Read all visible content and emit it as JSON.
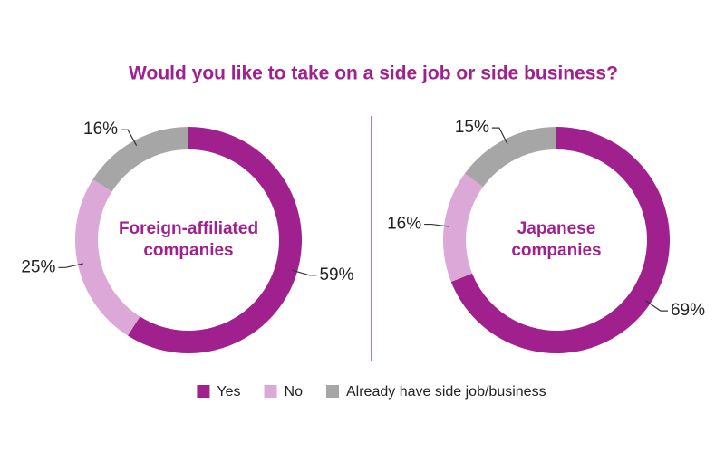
{
  "title": "Would you like to take on a side job or side business?",
  "chart_data": [
    {
      "type": "pie",
      "donut": true,
      "title": "Foreign-affiliated companies",
      "categories": [
        "Yes",
        "No",
        "Already have side job/business"
      ],
      "colors": [
        "#a0208e",
        "#dca8d8",
        "#a6a6a6"
      ],
      "values": [
        59,
        25,
        16
      ],
      "value_labels": [
        "59%",
        "25%",
        "16%"
      ]
    },
    {
      "type": "pie",
      "donut": true,
      "title": "Japanese companies",
      "categories": [
        "Yes",
        "No",
        "Already have side job/business"
      ],
      "colors": [
        "#a0208e",
        "#dca8d8",
        "#a6a6a6"
      ],
      "values": [
        69,
        16,
        15
      ],
      "value_labels": [
        "69%",
        "16%",
        "15%"
      ]
    }
  ]
}
